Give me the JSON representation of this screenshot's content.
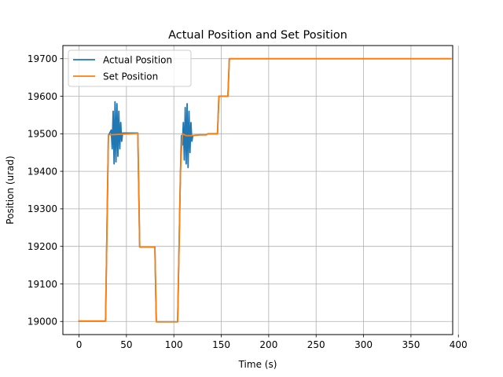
{
  "chart_data": {
    "type": "line",
    "title": "Actual Position and Set Position",
    "xlabel": "Time (s)",
    "ylabel": "Position (urad)",
    "xlim": [
      -17,
      394
    ],
    "ylim": [
      18965,
      19735
    ],
    "xticks": [
      0,
      50,
      100,
      150,
      200,
      250,
      300,
      350,
      400
    ],
    "yticks": [
      19000,
      19100,
      19200,
      19300,
      19400,
      19500,
      19600,
      19700
    ],
    "grid": true,
    "legend_position": "top-left",
    "series": [
      {
        "name": "Actual Position",
        "color": "#1f77b4",
        "x": [
          0,
          28,
          29.5,
          31,
          34,
          35,
          36,
          37,
          38,
          39,
          40,
          41,
          42,
          43,
          44,
          45,
          46,
          62,
          64,
          80,
          81.5,
          104,
          107,
          108,
          109,
          110,
          111,
          112,
          113,
          114,
          115,
          116,
          117,
          118,
          119,
          120,
          122,
          127,
          134,
          136,
          146,
          147.5,
          157,
          158.5,
          392
        ],
        "y": [
          19001,
          19001,
          19250,
          19495,
          19510,
          19460,
          19560,
          19420,
          19585,
          19425,
          19580,
          19440,
          19560,
          19460,
          19530,
          19480,
          19502,
          19502,
          19198,
          19198,
          18999,
          18999,
          19400,
          19495,
          19470,
          19530,
          19430,
          19570,
          19420,
          19580,
          19410,
          19560,
          19450,
          19530,
          19480,
          19495,
          19496,
          19497,
          19497,
          19500,
          19500,
          19600,
          19600,
          19700,
          19700
        ]
      },
      {
        "name": "Set Position",
        "color": "#ff7f0e",
        "x": [
          0,
          28,
          29.5,
          31,
          46,
          62,
          64,
          80,
          81.5,
          104,
          107,
          109,
          113,
          118,
          122,
          127,
          134,
          136,
          146,
          147.5,
          157,
          158.5,
          392
        ],
        "y": [
          19001,
          19001,
          19250,
          19497,
          19499,
          19501,
          19198,
          19198,
          18999,
          18999,
          19400,
          19500,
          19495,
          19495,
          19496,
          19497,
          19497,
          19500,
          19500,
          19600,
          19600,
          19700,
          19700
        ]
      }
    ]
  }
}
